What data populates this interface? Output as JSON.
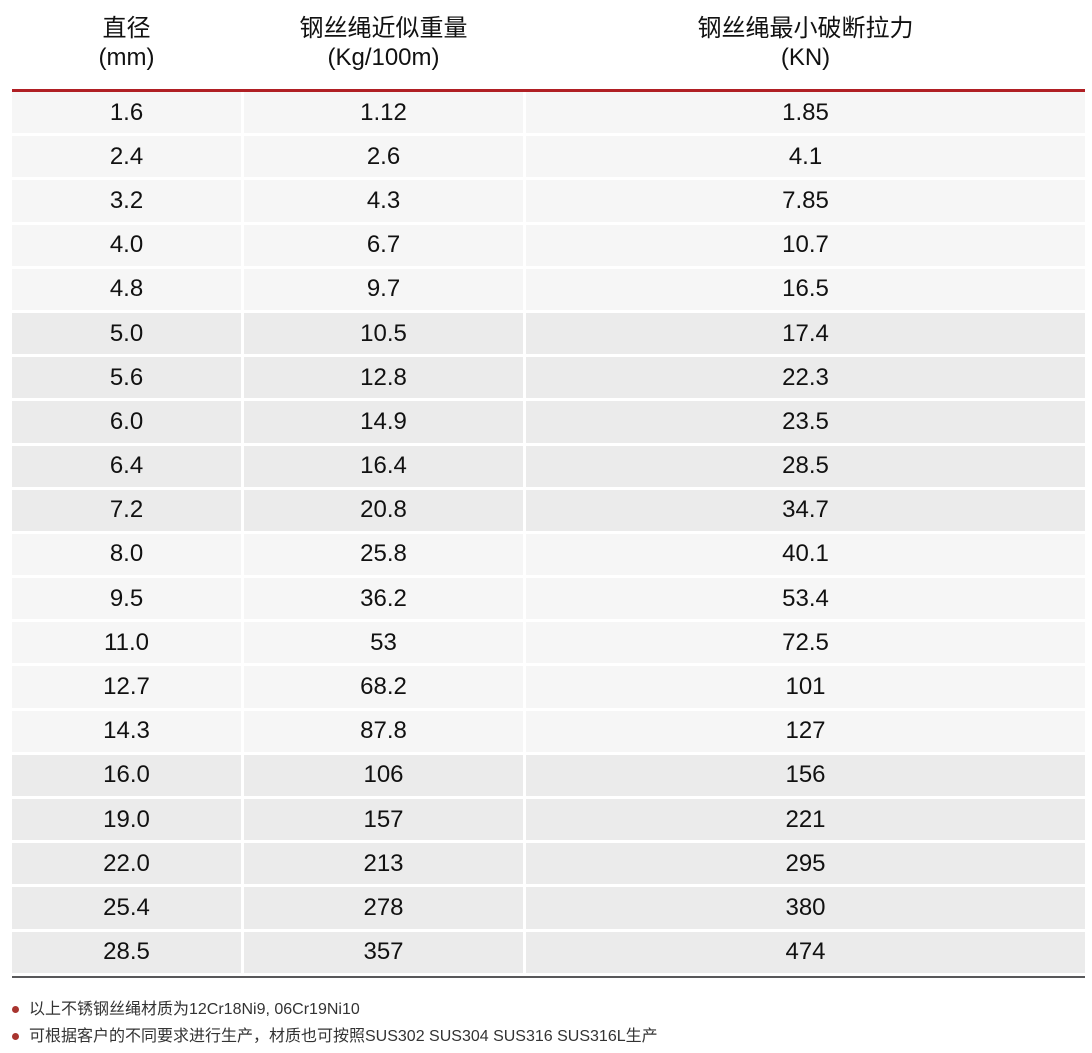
{
  "table": {
    "columns": [
      {
        "title": "直径",
        "unit": "(mm)"
      },
      {
        "title": "钢丝绳近似重量",
        "unit": "(Kg/100m)"
      },
      {
        "title": "钢丝绳最小破断拉力",
        "unit": "(KN)"
      }
    ],
    "rows": [
      [
        "1.6",
        "1.12",
        "1.85"
      ],
      [
        "2.4",
        "2.6",
        "4.1"
      ],
      [
        "3.2",
        "4.3",
        "7.85"
      ],
      [
        "4.0",
        "6.7",
        "10.7"
      ],
      [
        "4.8",
        "9.7",
        "16.5"
      ],
      [
        "5.0",
        "10.5",
        "17.4"
      ],
      [
        "5.6",
        "12.8",
        "22.3"
      ],
      [
        "6.0",
        "14.9",
        "23.5"
      ],
      [
        "6.4",
        "16.4",
        "28.5"
      ],
      [
        "7.2",
        "20.8",
        "34.7"
      ],
      [
        "8.0",
        "25.8",
        "40.1"
      ],
      [
        "9.5",
        "36.2",
        "53.4"
      ],
      [
        "11.0",
        "53",
        "72.5"
      ],
      [
        "12.7",
        "68.2",
        "101"
      ],
      [
        "14.3",
        "87.8",
        "127"
      ],
      [
        "16.0",
        "106",
        "156"
      ],
      [
        "19.0",
        "157",
        "221"
      ],
      [
        "22.0",
        "213",
        "295"
      ],
      [
        "25.4",
        "278",
        "380"
      ],
      [
        "28.5",
        "357",
        "474"
      ]
    ]
  },
  "notes": [
    "以上不锈钢丝绳材质为12Cr18Ni9, 06Cr19Ni10",
    "可根据客户的不同要求进行生产，材质也可按照SUS302 SUS304 SUS316 SUS316L生产"
  ],
  "colors": {
    "header_rule": "#b01f24",
    "bottom_rule": "#58585a",
    "band_light": "#f6f6f6",
    "band_dark": "#ebebeb",
    "bullet": "#a8342f"
  }
}
